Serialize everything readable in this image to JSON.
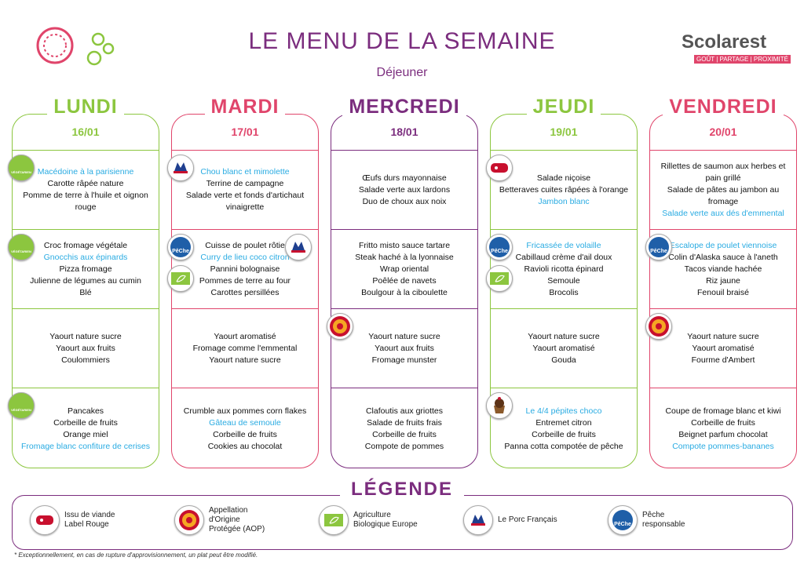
{
  "header": {
    "title": "LE MENU DE LA SEMAINE",
    "subtitle": "Déjeuner",
    "logo": "Scolarest",
    "tagline": "GOÛT | PARTAGE | PROXIMITÉ"
  },
  "icon_texts": {
    "vegetarien": "VÉGÉTARIEN",
    "peche": "PêChe"
  },
  "highlight_color": "#29abe2",
  "days": [
    {
      "name": "LUNDI",
      "date": "16/01",
      "color": "#8cc63f",
      "sections": [
        {
          "icons": [
            "vegetarien"
          ],
          "items": [
            {
              "text": "Macédoine à la parisienne",
              "highlight": true
            },
            "Carotte râpée nature",
            "Pomme de terre à l'huile et oignon rouge"
          ]
        },
        {
          "icons": [
            "vegetarien"
          ],
          "items": [
            "Croc fromage végétale",
            {
              "text": "Gnocchis aux épinards",
              "highlight": true
            },
            "Pizza fromage",
            "Julienne de légumes au cumin",
            "Blé"
          ]
        },
        {
          "icons": [],
          "items": [
            "Yaourt nature sucre",
            "Yaourt aux fruits",
            "Coulommiers"
          ]
        },
        {
          "icons": [
            "vegetarien"
          ],
          "items": [
            "Pancakes",
            "Corbeille de fruits",
            "Orange miel",
            {
              "text": "Fromage blanc confiture de cerises",
              "highlight": true
            }
          ]
        }
      ]
    },
    {
      "name": "MARDI",
      "date": "17/01",
      "color": "#e0456b",
      "sections": [
        {
          "icons": [
            "porc"
          ],
          "items": [
            {
              "text": "Chou blanc et mimolette",
              "highlight": true
            },
            "Terrine de campagne",
            "Salade verte et fonds d'artichaut vinaigrette"
          ]
        },
        {
          "icons": [
            "peche",
            "bio",
            "porc"
          ],
          "items": [
            "Cuisse de poulet rôtie",
            {
              "text": "Curry de lieu coco citron",
              "highlight": true
            },
            "Pannini bolognaise",
            "Pommes de terre au four",
            "Carottes persillées"
          ]
        },
        {
          "icons": [],
          "items": [
            "Yaourt aromatisé",
            "Fromage comme l'emmental",
            "Yaourt nature sucre"
          ]
        },
        {
          "icons": [],
          "items": [
            "Crumble aux pommes corn flakes",
            {
              "text": "Gâteau de semoule",
              "highlight": true
            },
            "Corbeille de fruits",
            "Cookies au chocolat"
          ]
        }
      ]
    },
    {
      "name": "MERCREDI",
      "date": "18/01",
      "color": "#7b2d7e",
      "sections": [
        {
          "icons": [],
          "items": [
            "Œufs durs mayonnaise",
            "Salade verte aux lardons",
            "Duo de choux aux noix"
          ]
        },
        {
          "icons": [],
          "items": [
            "Fritto misto sauce tartare",
            "Steak haché à la lyonnaise",
            "Wrap oriental",
            "Poêlée de navets",
            "Boulgour à la ciboulette"
          ]
        },
        {
          "icons": [
            "aop"
          ],
          "items": [
            "Yaourt nature sucre",
            "Yaourt aux fruits",
            "Fromage munster"
          ]
        },
        {
          "icons": [],
          "items": [
            "Clafoutis aux griottes",
            "Salade de fruits frais",
            "Corbeille de fruits",
            "Compote de pommes"
          ]
        }
      ]
    },
    {
      "name": "JEUDI",
      "date": "19/01",
      "color": "#8cc63f",
      "sections": [
        {
          "icons": [
            "label-rouge"
          ],
          "items": [
            "Salade niçoise",
            "Betteraves cuites râpées à l'orange",
            {
              "text": "Jambon blanc",
              "highlight": true
            }
          ]
        },
        {
          "icons": [
            "peche",
            "bio"
          ],
          "items": [
            {
              "text": "Fricassée de volaille",
              "highlight": true
            },
            "Cabillaud crème d'ail doux",
            "Ravioli ricotta épinard",
            "Semoule",
            "Brocolis"
          ]
        },
        {
          "icons": [],
          "items": [
            "Yaourt nature sucre",
            "Yaourt aromatisé",
            "Gouda"
          ]
        },
        {
          "icons": [
            "cake"
          ],
          "items": [
            {
              "text": "Le 4/4 pépites choco",
              "highlight": true
            },
            "Entremet citron",
            "Corbeille de fruits",
            "Panna cotta compotée de pêche"
          ]
        }
      ]
    },
    {
      "name": "VENDREDI",
      "date": "20/01",
      "color": "#e0456b",
      "sections": [
        {
          "icons": [],
          "items": [
            "Rillettes de saumon aux herbes et pain grillé",
            "Salade de pâtes au jambon au fromage",
            {
              "text": "Salade verte aux dés d'emmental",
              "highlight": true
            }
          ]
        },
        {
          "icons": [
            "peche"
          ],
          "items": [
            {
              "text": "Escalope de poulet viennoise",
              "highlight": true
            },
            "Colin d'Alaska sauce à l'aneth",
            "Tacos viande hachée",
            "Riz jaune",
            "Fenouil braisé"
          ]
        },
        {
          "icons": [
            "aop"
          ],
          "items": [
            "Yaourt nature sucre",
            "Yaourt aromatisé",
            "Fourme d'Ambert"
          ]
        },
        {
          "icons": [],
          "items": [
            "Coupe de fromage blanc et kiwi",
            "Corbeille de fruits",
            "Beignet parfum chocolat",
            {
              "text": "Compote pommes-bananes",
              "highlight": true
            }
          ]
        }
      ]
    }
  ],
  "legend": {
    "title": "LÉGENDE",
    "items": [
      {
        "icon": "label-rouge",
        "label": "Issu de viande Label Rouge"
      },
      {
        "icon": "aop",
        "label": "Appellation d'Origine Protégée (AOP)"
      },
      {
        "icon": "bio",
        "label": "Agriculture Biologique Europe"
      },
      {
        "icon": "porc",
        "label": "Le Porc Français"
      },
      {
        "icon": "peche",
        "label": "Pêche responsable"
      }
    ]
  },
  "footnote": "* Exceptionnellement, en cas de rupture d'approvisionnement, un plat peut être modifié."
}
